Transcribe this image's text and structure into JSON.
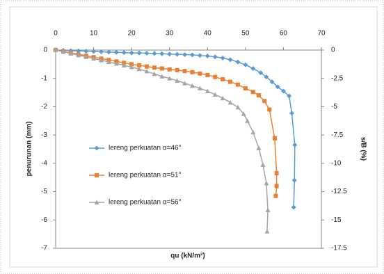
{
  "chart_data": {
    "type": "line",
    "x_label": "qu (kN/m²)",
    "y_label": "penurunan (mm)",
    "y2_label": "s/B (%)",
    "xlim": [
      0,
      70
    ],
    "xticks": [
      0,
      10,
      20,
      30,
      40,
      50,
      60,
      70
    ],
    "ylim": [
      -7,
      0
    ],
    "yticks": [
      0,
      -1,
      -2,
      -3,
      -4,
      -5,
      -6,
      -7
    ],
    "y2lim": [
      -17.5,
      0
    ],
    "y2ticks": [
      0,
      -2.5,
      -5,
      -7.5,
      -10,
      -12.5,
      -15,
      -17.5
    ],
    "grid": false,
    "legend": "left",
    "series": [
      {
        "name": "lereng perkuatan α=46°",
        "color": "#5b9bd5",
        "marker": "diamond",
        "x": [
          0,
          2,
          4,
          6,
          8,
          10,
          12,
          14,
          16,
          18,
          20,
          22,
          24,
          26,
          28,
          30,
          32,
          34,
          36,
          38,
          40,
          42,
          44,
          46,
          48,
          50,
          52,
          54,
          55.5,
          57,
          58.5,
          60,
          61.5,
          62.2,
          63,
          62.9,
          62.7
        ],
        "values": [
          0,
          -0.01,
          -0.02,
          -0.03,
          -0.04,
          -0.05,
          -0.06,
          -0.07,
          -0.08,
          -0.09,
          -0.1,
          -0.1,
          -0.11,
          -0.12,
          -0.13,
          -0.14,
          -0.15,
          -0.16,
          -0.17,
          -0.19,
          -0.21,
          -0.24,
          -0.28,
          -0.34,
          -0.42,
          -0.52,
          -0.65,
          -0.8,
          -0.95,
          -1.12,
          -1.3,
          -1.45,
          -1.62,
          -2.23,
          -3.35,
          -4.6,
          -5.55
        ]
      },
      {
        "name": "lereng perkuatan α=51°",
        "color": "#ed7d31",
        "marker": "square",
        "x": [
          0,
          2,
          4,
          6,
          8,
          10,
          12,
          14,
          16,
          18,
          20,
          22,
          24,
          26,
          28,
          30,
          32,
          34,
          36,
          38,
          40,
          42,
          44,
          46,
          48,
          50,
          52,
          53.5,
          55,
          56.3,
          57.7,
          58.2,
          58.2,
          58
        ],
        "values": [
          0,
          -0.05,
          -0.1,
          -0.15,
          -0.2,
          -0.25,
          -0.3,
          -0.35,
          -0.4,
          -0.45,
          -0.5,
          -0.54,
          -0.58,
          -0.62,
          -0.65,
          -0.68,
          -0.71,
          -0.74,
          -0.78,
          -0.83,
          -0.88,
          -0.95,
          -1.03,
          -1.12,
          -1.22,
          -1.35,
          -1.48,
          -1.6,
          -1.8,
          -2.1,
          -3.12,
          -4.35,
          -4.8,
          -5.15
        ]
      },
      {
        "name": "lereng perkuatan α=56°",
        "color": "#a5a5a5",
        "marker": "triangle",
        "x": [
          0,
          2,
          4,
          6,
          8,
          10,
          12,
          14,
          16,
          18,
          20,
          22,
          24,
          26,
          28,
          30,
          32,
          34,
          36,
          38,
          40,
          42,
          44,
          46,
          48,
          49.5,
          50.5,
          52,
          53.5,
          54.6,
          55.5,
          55.9,
          55.7
        ],
        "values": [
          0,
          -0.06,
          -0.12,
          -0.18,
          -0.24,
          -0.3,
          -0.36,
          -0.42,
          -0.48,
          -0.54,
          -0.6,
          -0.67,
          -0.75,
          -0.84,
          -0.93,
          -1.0,
          -1.08,
          -1.17,
          -1.26,
          -1.35,
          -1.45,
          -1.57,
          -1.7,
          -1.85,
          -2.02,
          -2.25,
          -2.5,
          -2.9,
          -3.46,
          -4.05,
          -4.7,
          -5.65,
          -6.4
        ]
      }
    ]
  }
}
